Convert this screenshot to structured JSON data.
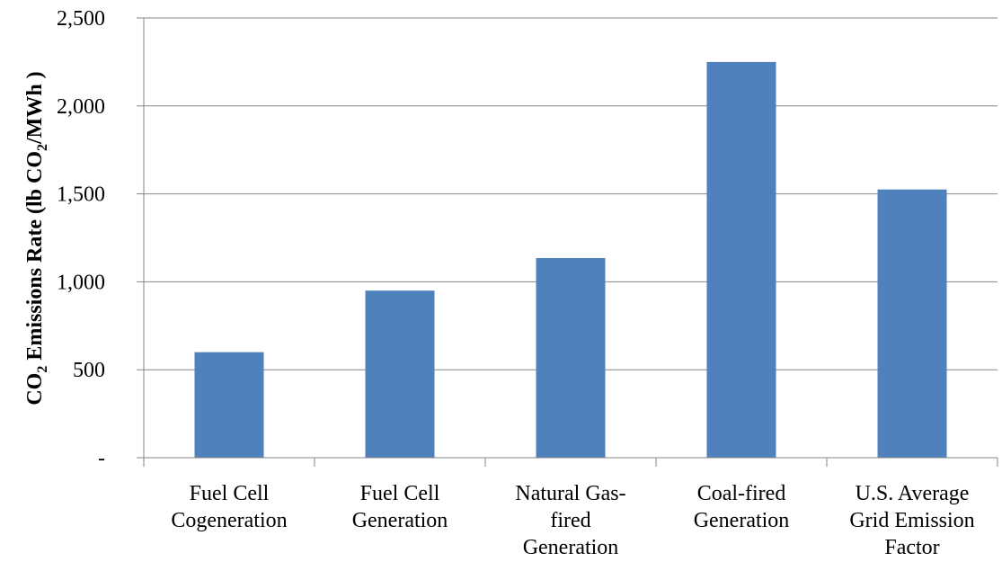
{
  "chart_data": {
    "type": "bar",
    "y_label": [
      "CO",
      "2",
      " Emissions Rate (lb CO",
      "2",
      "/MWh )"
    ],
    "categories": [
      [
        "Fuel Cell",
        "Cogeneration"
      ],
      [
        "Fuel Cell",
        "Generation"
      ],
      [
        "Natural Gas-",
        "fired",
        "Generation"
      ],
      [
        "Coal-fired",
        "Generation"
      ],
      [
        "U.S. Average",
        "Grid Emission",
        "Factor"
      ]
    ],
    "values": [
      600,
      950,
      1135,
      2250,
      1525
    ],
    "color": "#4f81bd",
    "ylim": [
      0,
      2500
    ],
    "yticks": [
      {
        "value": 0,
        "label": "-"
      },
      500,
      {
        "value": 1000,
        "label": "1,000"
      },
      {
        "value": 1500,
        "label": "1,500"
      },
      {
        "value": 2000,
        "label": "2,000"
      },
      {
        "value": 2500,
        "label": "2,500"
      }
    ],
    "grid": true
  }
}
